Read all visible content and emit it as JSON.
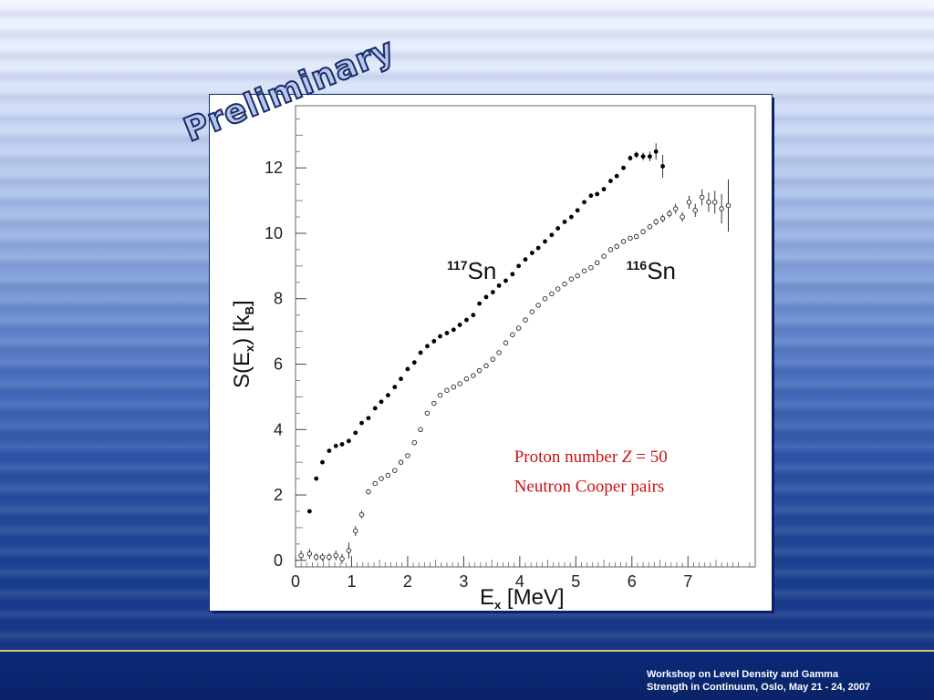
{
  "footer": {
    "line1": "Workshop on  Level Density and  Gamma",
    "line2": "Strength in Continuum, Oslo, May 21 - 24, 2007"
  },
  "watermark": "Preliminary",
  "colors": {
    "annotation": "#cc1111",
    "frame_border": "#0d2b70"
  },
  "chart_data": {
    "type": "scatter",
    "xlabel": {
      "main": "E",
      "sub": "x",
      "unit": "[MeV]"
    },
    "ylabel": {
      "main": "S(E",
      "sub": "x",
      "rest": ") [k",
      "sub2": "B",
      "end": "]"
    },
    "xlim": [
      0,
      8.2
    ],
    "ylim": [
      -0.2,
      13.9
    ],
    "xticks": [
      0,
      1,
      2,
      3,
      4,
      5,
      6,
      7
    ],
    "yticks": [
      0,
      2,
      4,
      6,
      8,
      10,
      12
    ],
    "grid": false,
    "series": [
      {
        "marker": "filled",
        "x": [
          0.25,
          0.37,
          0.48,
          0.6,
          0.72,
          0.83,
          0.95,
          1.07,
          1.18,
          1.3,
          1.42,
          1.53,
          1.65,
          1.77,
          1.88,
          2.0,
          2.12,
          2.23,
          2.35,
          2.47,
          2.58,
          2.7,
          2.82,
          2.93,
          3.05,
          3.17,
          3.28,
          3.4,
          3.52,
          3.63,
          3.75,
          3.87,
          3.98,
          4.1,
          4.22,
          4.33,
          4.45,
          4.57,
          4.68,
          4.8,
          4.92,
          5.03,
          5.15,
          5.27,
          5.38,
          5.5,
          5.62,
          5.73,
          5.85,
          5.97,
          6.08,
          6.2,
          6.32,
          6.43,
          6.55
        ],
        "y": [
          1.5,
          2.5,
          3.0,
          3.35,
          3.5,
          3.55,
          3.65,
          3.9,
          4.2,
          4.35,
          4.65,
          4.85,
          5.05,
          5.3,
          5.55,
          5.85,
          6.05,
          6.35,
          6.55,
          6.7,
          6.85,
          6.95,
          7.05,
          7.2,
          7.35,
          7.5,
          7.85,
          8.05,
          8.2,
          8.4,
          8.55,
          8.75,
          9.0,
          9.2,
          9.4,
          9.55,
          9.75,
          9.95,
          10.15,
          10.35,
          10.5,
          10.7,
          10.95,
          11.15,
          11.2,
          11.35,
          11.6,
          11.75,
          12.0,
          12.3,
          12.4,
          12.35,
          12.35,
          12.5,
          12.05
        ],
        "err": [
          0.04,
          0.04,
          0.04,
          0.04,
          0.04,
          0.04,
          0.04,
          0.04,
          0.04,
          0.04,
          0.04,
          0.04,
          0.04,
          0.04,
          0.04,
          0.04,
          0.04,
          0.04,
          0.04,
          0.04,
          0.04,
          0.04,
          0.04,
          0.04,
          0.04,
          0.04,
          0.04,
          0.04,
          0.04,
          0.04,
          0.04,
          0.04,
          0.04,
          0.04,
          0.04,
          0.04,
          0.04,
          0.04,
          0.04,
          0.04,
          0.04,
          0.04,
          0.04,
          0.04,
          0.04,
          0.04,
          0.05,
          0.05,
          0.06,
          0.08,
          0.1,
          0.12,
          0.15,
          0.25,
          0.35
        ]
      },
      {
        "marker": "open",
        "x": [
          0.1,
          0.25,
          0.37,
          0.48,
          0.6,
          0.72,
          0.83,
          0.95,
          1.07,
          1.18,
          1.3,
          1.42,
          1.53,
          1.65,
          1.77,
          1.88,
          2.0,
          2.12,
          2.23,
          2.35,
          2.47,
          2.58,
          2.7,
          2.82,
          2.93,
          3.05,
          3.17,
          3.28,
          3.4,
          3.52,
          3.63,
          3.75,
          3.87,
          3.98,
          4.1,
          4.22,
          4.33,
          4.45,
          4.57,
          4.68,
          4.8,
          4.92,
          5.03,
          5.15,
          5.27,
          5.38,
          5.5,
          5.62,
          5.73,
          5.85,
          5.97,
          6.08,
          6.2,
          6.32,
          6.43,
          6.55,
          6.67,
          6.78,
          6.9,
          7.02,
          7.13,
          7.25,
          7.37,
          7.48,
          7.6,
          7.72
        ],
        "y": [
          0.15,
          0.2,
          0.1,
          0.1,
          0.1,
          0.15,
          0.05,
          0.3,
          0.9,
          1.4,
          2.1,
          2.35,
          2.5,
          2.6,
          2.75,
          3.0,
          3.2,
          3.6,
          4.0,
          4.5,
          4.8,
          5.05,
          5.2,
          5.3,
          5.4,
          5.55,
          5.65,
          5.8,
          5.95,
          6.15,
          6.35,
          6.65,
          6.9,
          7.1,
          7.35,
          7.6,
          7.8,
          8.0,
          8.15,
          8.3,
          8.45,
          8.6,
          8.7,
          8.85,
          8.95,
          9.1,
          9.3,
          9.5,
          9.6,
          9.75,
          9.85,
          9.9,
          10.05,
          10.2,
          10.35,
          10.45,
          10.6,
          10.75,
          10.5,
          10.95,
          10.7,
          11.1,
          10.95,
          10.95,
          10.75,
          10.85
        ],
        "err": [
          0.15,
          0.15,
          0.12,
          0.12,
          0.12,
          0.15,
          0.15,
          0.25,
          0.15,
          0.12,
          0.08,
          0.06,
          0.05,
          0.05,
          0.05,
          0.05,
          0.05,
          0.05,
          0.05,
          0.05,
          0.05,
          0.05,
          0.05,
          0.05,
          0.05,
          0.05,
          0.05,
          0.05,
          0.05,
          0.05,
          0.05,
          0.05,
          0.05,
          0.05,
          0.05,
          0.05,
          0.05,
          0.05,
          0.05,
          0.05,
          0.05,
          0.05,
          0.05,
          0.05,
          0.05,
          0.05,
          0.05,
          0.05,
          0.05,
          0.05,
          0.06,
          0.06,
          0.07,
          0.08,
          0.1,
          0.12,
          0.12,
          0.15,
          0.15,
          0.2,
          0.2,
          0.25,
          0.3,
          0.35,
          0.45,
          0.8
        ]
      }
    ],
    "annotations": [
      {
        "mass": "117",
        "element": "Sn",
        "x": 2.7,
        "y": 8.6
      },
      {
        "mass": "116",
        "element": "Sn",
        "x": 5.9,
        "y": 8.6
      },
      {
        "line": "Proton number ",
        "italic": "Z",
        "rest": " = 50",
        "x": 3.9,
        "y": 3.0
      },
      {
        "line": "Neutron Cooper pairs",
        "x": 3.9,
        "y": 2.1
      }
    ]
  }
}
